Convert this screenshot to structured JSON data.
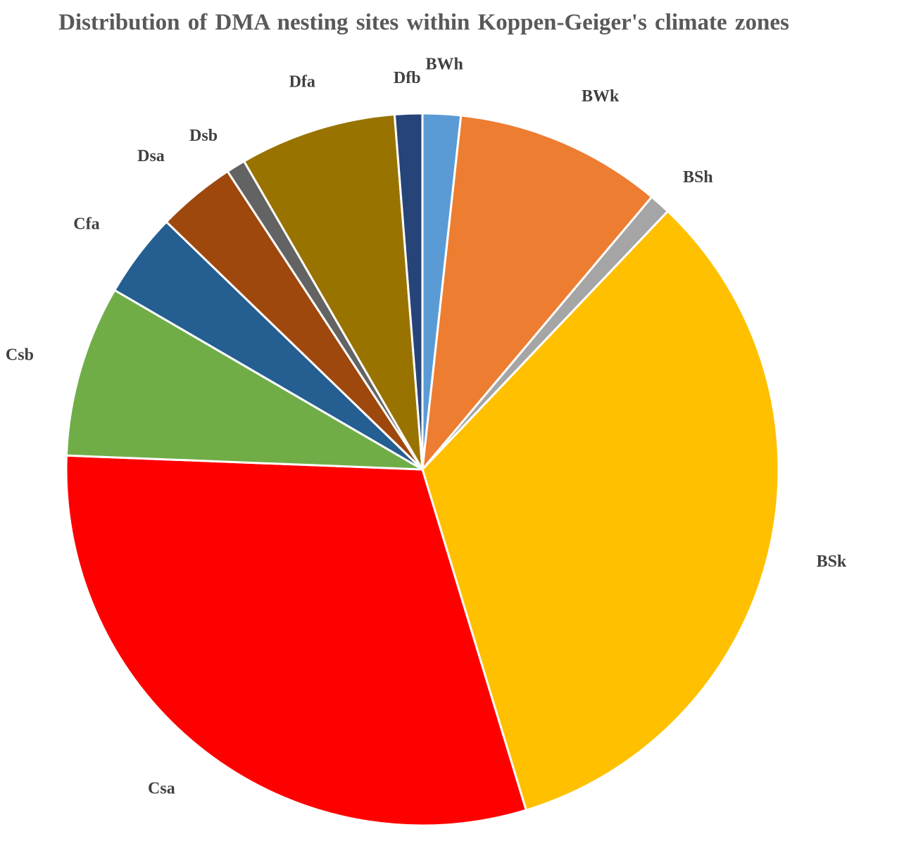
{
  "chart_data": {
    "type": "pie",
    "title": "Distribution  of DMA nesting sites within  Koppen-Geiger's  climate zones",
    "categories": [
      "BWh",
      "BWk",
      "BSh",
      "BSk",
      "Csa",
      "Csb",
      "Cfa",
      "Dsa",
      "Dsb",
      "Dfa",
      "Dfb"
    ],
    "values": [
      1.8,
      9.8,
      1.0,
      34.6,
      31.6,
      8.1,
      4.0,
      3.7,
      0.9,
      7.4,
      1.3
    ],
    "colors": [
      "#5b9bd5",
      "#ed7d31",
      "#a5a5a5",
      "#ffc000",
      "#ff0000",
      "#70ad47",
      "#255e91",
      "#9e480e",
      "#636363",
      "#997300",
      "#264478"
    ],
    "start_angle_deg": 0,
    "direction": "clockwise",
    "legend": "none",
    "data_labels": "category name outside slices"
  }
}
